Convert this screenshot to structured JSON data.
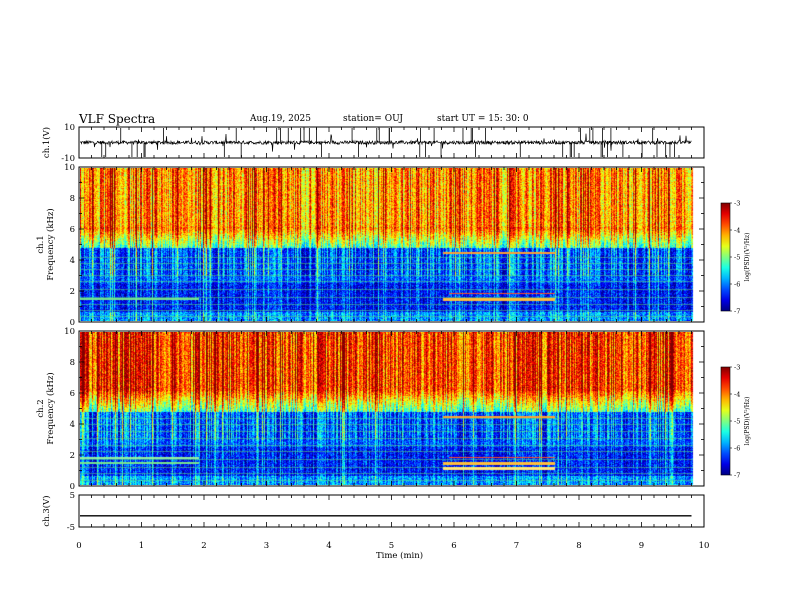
{
  "header": {
    "title": "VLF Spectra",
    "date": "Aug.19, 2025",
    "station": "station= OUJ",
    "start": "start  UT =   15: 30: 0"
  },
  "chart_data": [
    {
      "type": "line",
      "panel": "ch1-waveform",
      "ylabel": "ch.1(V)",
      "ylim": [
        -10,
        10
      ],
      "yticks": [
        {
          "v": 10,
          "t": "10"
        },
        {
          "v": -10,
          "t": "-10"
        }
      ],
      "xlim": [
        0,
        10
      ],
      "baseline": 0,
      "color": "#000000"
    },
    {
      "type": "heatmap",
      "panel": "ch1-spectrogram",
      "ylabel_line1": "ch.1",
      "ylabel_line2": "Frequency (kHz)",
      "ylim": [
        0,
        10
      ],
      "yticks": [
        {
          "v": 0,
          "t": "0"
        },
        {
          "v": 2,
          "t": "2"
        },
        {
          "v": 4,
          "t": "4"
        },
        {
          "v": 6,
          "t": "6"
        },
        {
          "v": 8,
          "t": "8"
        },
        {
          "v": 10,
          "t": "10"
        }
      ],
      "xlim": [
        0,
        10
      ],
      "data_end_min": 9.8,
      "colorbar": {
        "label": "log(PSD)(V²/Hz)",
        "range": [
          -7,
          -3
        ],
        "ticks": [
          {
            "v": -3,
            "t": "-3"
          },
          {
            "v": -4,
            "t": "-4"
          },
          {
            "v": -5,
            "t": "-5"
          },
          {
            "v": -6,
            "t": "-6"
          },
          {
            "v": -7,
            "t": "-7"
          }
        ]
      }
    },
    {
      "type": "heatmap",
      "panel": "ch2-spectrogram",
      "ylabel_line1": "ch.2",
      "ylabel_line2": "Frequency (kHz)",
      "ylim": [
        0,
        10
      ],
      "yticks": [
        {
          "v": 0,
          "t": "0"
        },
        {
          "v": 2,
          "t": "2"
        },
        {
          "v": 4,
          "t": "4"
        },
        {
          "v": 6,
          "t": "6"
        },
        {
          "v": 8,
          "t": "8"
        },
        {
          "v": 10,
          "t": "10"
        }
      ],
      "xlim": [
        0,
        10
      ],
      "data_end_min": 9.8,
      "colorbar": {
        "label": "log(PSD)(V²/Hz)",
        "range": [
          -7,
          -3
        ],
        "ticks": [
          {
            "v": -3,
            "t": "-3"
          },
          {
            "v": -4,
            "t": "-4"
          },
          {
            "v": -5,
            "t": "-5"
          },
          {
            "v": -6,
            "t": "-6"
          },
          {
            "v": -7,
            "t": "-7"
          }
        ]
      }
    },
    {
      "type": "line",
      "panel": "ch3-waveform",
      "ylabel": "ch.3(V)",
      "ylim": [
        -5,
        5
      ],
      "yticks": [
        {
          "v": 5,
          "t": "5"
        },
        {
          "v": -5,
          "t": "-5"
        }
      ],
      "xlim": [
        0,
        10
      ],
      "baseline": -1.5,
      "color": "#000000",
      "xlabel": "Time (min)",
      "xticks": [
        {
          "v": 0,
          "t": "0"
        },
        {
          "v": 1,
          "t": "1"
        },
        {
          "v": 2,
          "t": "2"
        },
        {
          "v": 3,
          "t": "3"
        },
        {
          "v": 4,
          "t": "4"
        },
        {
          "v": 5,
          "t": "5"
        },
        {
          "v": 6,
          "t": "6"
        },
        {
          "v": 7,
          "t": "7"
        },
        {
          "v": 8,
          "t": "8"
        },
        {
          "v": 9,
          "t": "9"
        },
        {
          "v": 10,
          "t": "10"
        }
      ]
    }
  ]
}
